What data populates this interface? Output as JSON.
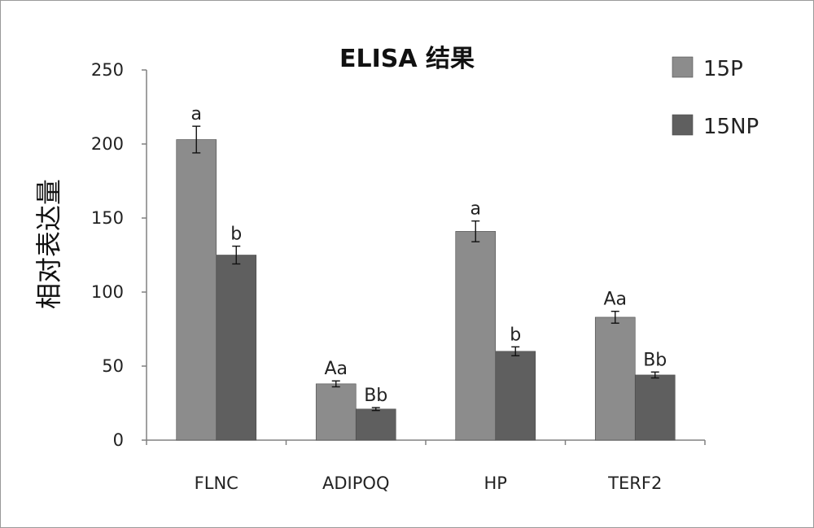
{
  "chart_data": {
    "type": "bar",
    "title": "ELISA 结果",
    "xlabel": "",
    "ylabel": "相对表达量",
    "ylim": [
      0,
      250
    ],
    "yticks": [
      0,
      50,
      100,
      150,
      200,
      250
    ],
    "categories": [
      "FLNC",
      "ADIPOQ",
      "HP",
      "TERF2"
    ],
    "series": [
      {
        "name": "15P",
        "color": "#8c8c8c",
        "values": [
          203,
          38,
          141,
          83
        ],
        "errors": [
          9,
          2,
          7,
          4
        ],
        "labels": [
          "a",
          "Aa",
          "a",
          "Aa"
        ]
      },
      {
        "name": "15NP",
        "color": "#5f5f5f",
        "values": [
          125,
          21,
          60,
          44
        ],
        "errors": [
          6,
          1,
          3,
          2
        ],
        "labels": [
          "b",
          "Bb",
          "b",
          "Bb"
        ]
      }
    ],
    "legend_position": "top-right",
    "grid": false
  }
}
